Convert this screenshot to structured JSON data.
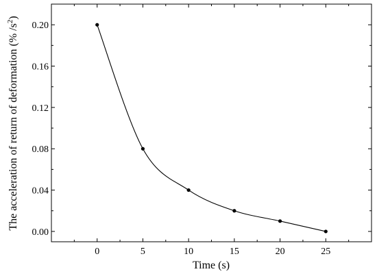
{
  "chart_data": {
    "type": "scatter",
    "xlabel": "Time (s)",
    "ylabel_main": "The acceleration of return of deformation (% /s",
    "ylabel_sup": "2",
    "ylabel_close": ")",
    "x": [
      0,
      5,
      10,
      15,
      20,
      25
    ],
    "y": [
      0.2,
      0.08,
      0.04,
      0.02,
      0.01,
      0.0
    ],
    "xlim": [
      -5,
      30
    ],
    "ylim": [
      -0.01,
      0.22
    ],
    "xticks": [
      0,
      5,
      10,
      15,
      20,
      25
    ],
    "xtick_labels": [
      "0",
      "5",
      "10",
      "15",
      "20",
      "25"
    ],
    "yticks": [
      0.0,
      0.04,
      0.08,
      0.12,
      0.16,
      0.2
    ],
    "ytick_labels": [
      "0.00",
      "0.04",
      "0.08",
      "0.12",
      "0.16",
      "0.20"
    ],
    "fit_curve": "smooth decay through points",
    "grid": false,
    "legend": "none"
  }
}
